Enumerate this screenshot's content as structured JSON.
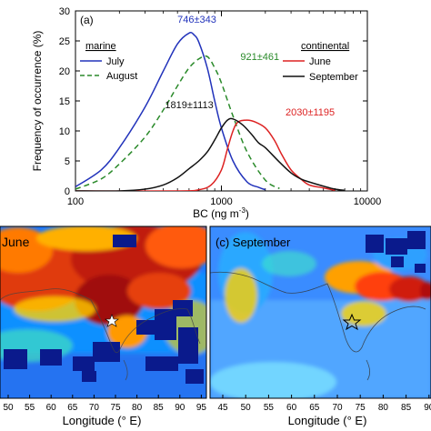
{
  "chart_data": [
    {
      "type": "line",
      "panel_label": "(a)",
      "xlabel_main": "BC (ng m",
      "xlabel_sup": "-3",
      "xlabel_close": ")",
      "ylabel": "Frequency of occurrence (%)",
      "x_scale": "log",
      "xlim": [
        100,
        10000
      ],
      "ylim": [
        0,
        30
      ],
      "x_ticks": [
        100,
        1000,
        10000
      ],
      "x_tick_labels": [
        "100",
        "1000",
        "10000"
      ],
      "y_ticks": [
        0,
        5,
        10,
        15,
        20,
        25,
        30
      ],
      "y_tick_labels": [
        "0",
        "5",
        "10",
        "15",
        "20",
        "25",
        "30"
      ],
      "grid": false,
      "legend_groups": [
        {
          "title": "marine",
          "placement": "upper-left",
          "series": [
            "July",
            "August"
          ]
        },
        {
          "title": "continental",
          "placement": "right",
          "series": [
            "June",
            "September"
          ]
        }
      ],
      "series": [
        {
          "name": "July",
          "color": "#2233bb",
          "dash": "solid",
          "x": [
            100,
            150,
            200,
            300,
            400,
            500,
            600,
            650,
            700,
            800,
            900,
            1000,
            1200,
            1500,
            1800,
            2000
          ],
          "y": [
            0.7,
            3.5,
            7.2,
            14,
            20,
            24.5,
            26.3,
            26,
            24.8,
            20.5,
            15,
            10.5,
            5,
            1.5,
            0.6,
            0.2
          ]
        },
        {
          "name": "August",
          "color": "#2a8a2a",
          "dash": "dashed",
          "x": [
            100,
            150,
            200,
            300,
            400,
            500,
            600,
            700,
            800,
            900,
            1000,
            1200,
            1500,
            2000,
            2500
          ],
          "y": [
            0.3,
            2,
            4.5,
            9,
            13.5,
            17.5,
            20.5,
            22,
            22.4,
            20.5,
            18,
            12.5,
            6.5,
            1.8,
            0.4
          ]
        },
        {
          "name": "June",
          "color": "#dd2222",
          "dash": "solid",
          "x": [
            100,
            500,
            700,
            850,
            1000,
            1100,
            1200,
            1300,
            1500,
            1700,
            2000,
            2300,
            2600,
            3000,
            3500,
            4000,
            5000,
            6000
          ],
          "y": [
            0,
            0,
            0.2,
            1,
            3.5,
            7,
            10,
            11.5,
            11.8,
            11.5,
            10.5,
            8.5,
            6,
            3.5,
            2,
            1,
            0.5,
            0.1
          ]
        },
        {
          "name": "September",
          "color": "#111111",
          "dash": "solid",
          "x": [
            100,
            200,
            300,
            400,
            500,
            600,
            700,
            800,
            900,
            1000,
            1100,
            1200,
            1400,
            1600,
            1800,
            2000,
            2500,
            3000,
            3500,
            4000,
            5000,
            6000,
            7000
          ],
          "y": [
            0,
            0,
            0.3,
            1,
            2.2,
            3.7,
            5,
            6.5,
            8.5,
            10.5,
            11.8,
            12,
            11,
            9.5,
            8,
            7.2,
            4.8,
            3,
            2,
            1.5,
            0.8,
            0.3,
            0.1
          ]
        }
      ],
      "annotations": [
        {
          "text": "746±343",
          "x": 500,
          "y": 28,
          "color": "#2233bb"
        },
        {
          "text": "921±461",
          "x": 1350,
          "y": 21.8,
          "color": "#2a8a2a"
        },
        {
          "text": "1819±1113",
          "x": 410,
          "y": 13.8,
          "color": "#111111"
        },
        {
          "text": "2030±1195",
          "x": 2750,
          "y": 12.6,
          "color": "#dd2222"
        }
      ]
    },
    {
      "type": "heatmap",
      "panel_label": "June",
      "xlabel": "Longitude (° E)",
      "x_tick_labels": [
        "50",
        "55",
        "60",
        "65",
        "70",
        "75",
        "80",
        "85",
        "90",
        "95"
      ],
      "colormap": "jet",
      "marker": "star"
    },
    {
      "type": "heatmap",
      "panel_label": "(c) September",
      "xlabel": "Longitude (° E)",
      "x_tick_labels": [
        "45",
        "50",
        "55",
        "60",
        "65",
        "70",
        "75",
        "80",
        "85",
        "90"
      ],
      "colormap": "jet",
      "marker": "star"
    }
  ]
}
